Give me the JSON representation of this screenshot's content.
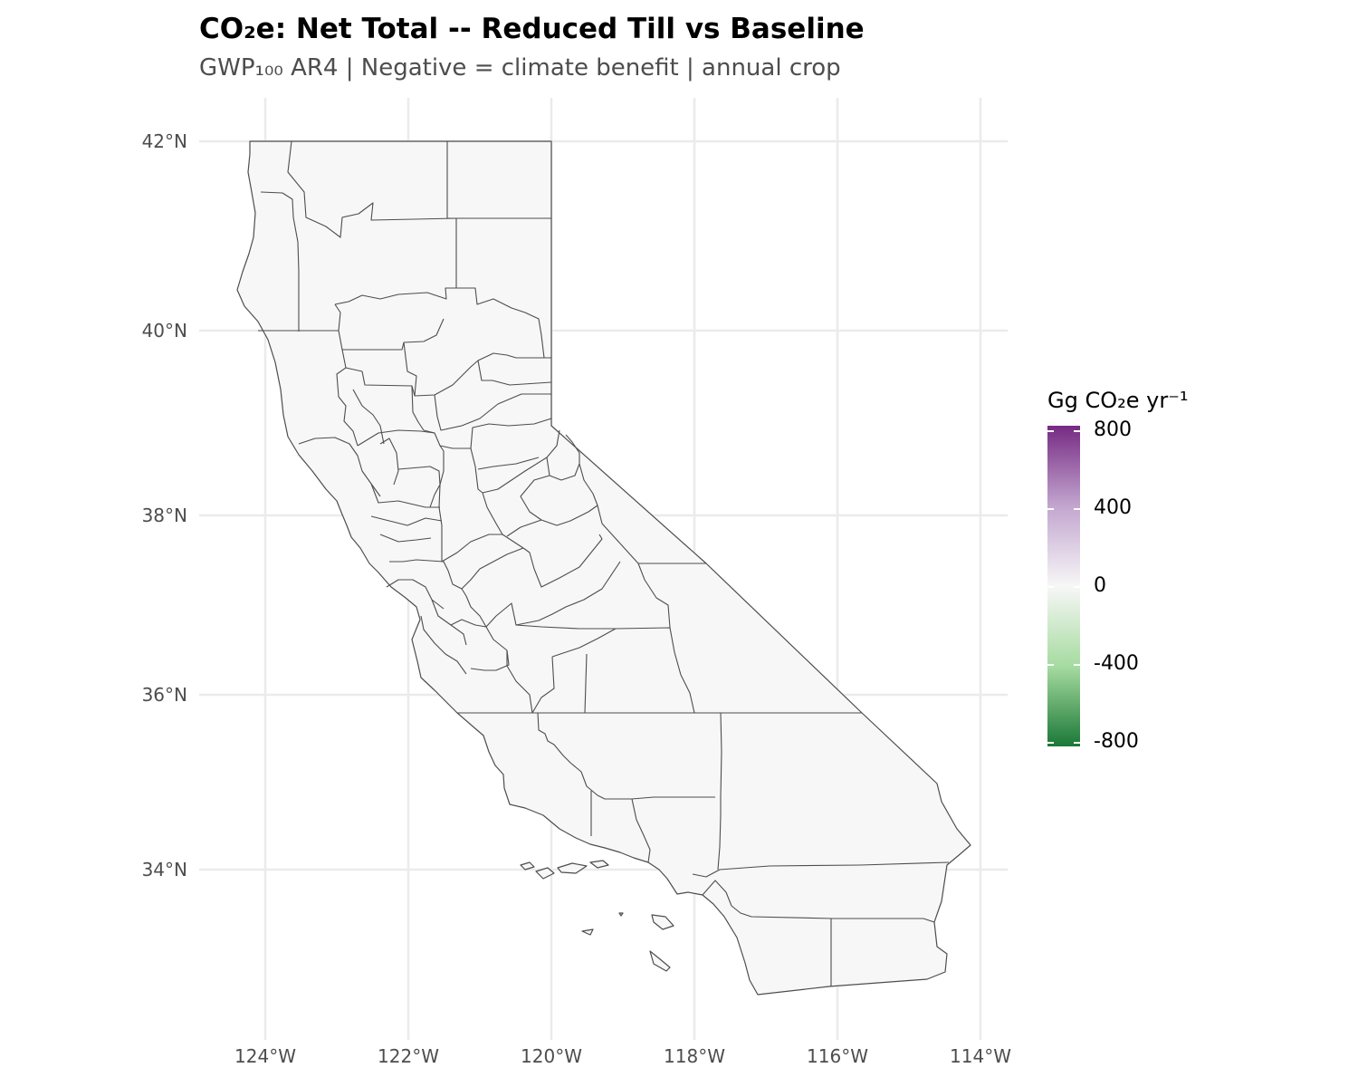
{
  "title": "CO₂e: Net Total -- Reduced Till vs Baseline",
  "subtitle": "GWP₁₀₀ AR4 | Negative = climate benefit | annual crop",
  "axes": {
    "x_ticks": [
      "124°W",
      "122°W",
      "120°W",
      "118°W",
      "116°W",
      "114°W"
    ],
    "y_ticks": [
      "42°N",
      "40°N",
      "38°N",
      "36°N",
      "34°N"
    ]
  },
  "legend": {
    "title": "Gg CO₂e yr⁻¹",
    "labels": [
      "800",
      "400",
      "0",
      "-400",
      "-800"
    ],
    "range": [
      -800,
      800
    ],
    "colors": {
      "high": "#762a83",
      "mid": "#f7f7f7",
      "low": "#1b7837"
    }
  },
  "map": {
    "region": "California",
    "unit": "county",
    "fill_color": "#f7f7f7",
    "border_color": "#4d4d4d"
  }
}
